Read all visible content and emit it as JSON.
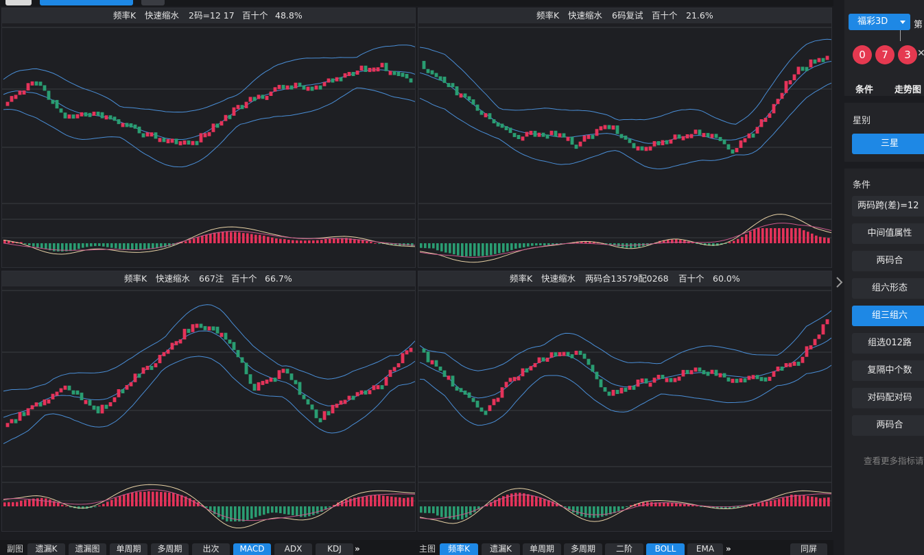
{
  "colors": {
    "accent": "#1e88e5",
    "up_candle": "#e5335a",
    "down_candle": "#2a9d72",
    "band_line": "#4a8fd8",
    "ball": "#e53950"
  },
  "panels": [
    {
      "title_parts": [
        "频率K",
        "快速缩水",
        "2码=12 17",
        "百十个",
        "48.8%"
      ]
    },
    {
      "title_parts": [
        "频率K",
        "快速缩水",
        "6码复试",
        "百十个",
        "21.6%"
      ]
    },
    {
      "title_parts": [
        "频率K",
        "快速缩水",
        "667注",
        "百十个",
        "66.7%"
      ]
    },
    {
      "title_parts": [
        "频率K",
        "快速缩水",
        "两码合13579配0268",
        "百十个",
        "60.0%"
      ]
    }
  ],
  "bottom_left": {
    "label": "副图",
    "buttons": [
      "遗漏K",
      "遗漏图",
      "单周期",
      "多周期",
      "出次",
      "MACD",
      "ADX",
      "KDJ"
    ],
    "active": "MACD",
    "more": "»"
  },
  "bottom_right": {
    "label": "主图",
    "buttons": [
      "频率K",
      "遗漏K",
      "单周期",
      "多周期",
      "二阶",
      "BOLL",
      "EMA"
    ],
    "active": [
      "频率K",
      "BOLL"
    ],
    "more": "»",
    "same_screen": "同屏"
  },
  "sidebar": {
    "lottery": "福彩3D",
    "di_label": "第",
    "balls": [
      "0",
      "7",
      "3"
    ],
    "tabs": [
      "条件",
      "走势图"
    ],
    "star_header": "星别",
    "star_button": "三星",
    "cond_header": "条件",
    "conditions": [
      "两码跨(差)=12",
      "中间值属性",
      "两码合",
      "组六形态",
      "组三组六",
      "组选012路",
      "复隔中个数",
      "对码配对码",
      "两码合"
    ],
    "active_condition_index": 4,
    "more_text": "查看更多指标请"
  },
  "icons": {
    "collapse": "chevron-right-icon",
    "home": "home-icon",
    "dropdown": "caret-down-icon"
  }
}
